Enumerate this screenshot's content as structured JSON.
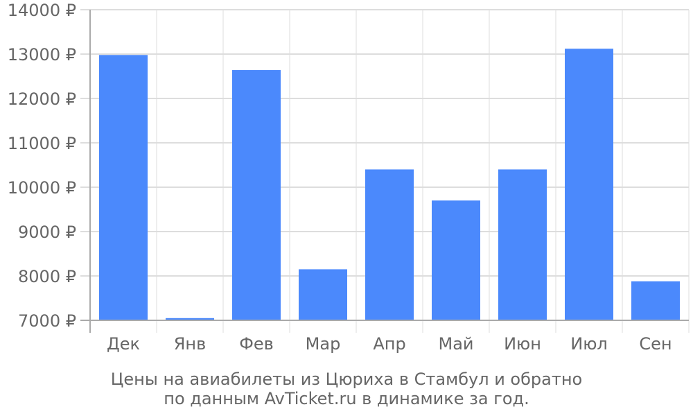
{
  "chart_data": {
    "type": "bar",
    "categories": [
      "Дек",
      "Янв",
      "Фев",
      "Мар",
      "Апр",
      "Май",
      "Июн",
      "Июл",
      "Сен"
    ],
    "series": [
      {
        "values": [
          12980,
          7050,
          12640,
          8150,
          10400,
          9700,
          10400,
          13120,
          7880
        ]
      }
    ],
    "ylim": [
      7000,
      14000
    ],
    "yticks": [
      7000,
      8000,
      9000,
      10000,
      11000,
      12000,
      13000,
      14000
    ],
    "ytick_suffix": " ₽",
    "grid": true,
    "bar_color": "#4b89fc",
    "grid_color": "#dddddd",
    "axis_color": "#aaaaaa",
    "text_color": "#666666"
  },
  "caption": {
    "line1": "Цены на авиабилеты из Цюриха в Стамбул и обратно",
    "line2": "по данным AvTicket.ru в динамике за год."
  }
}
